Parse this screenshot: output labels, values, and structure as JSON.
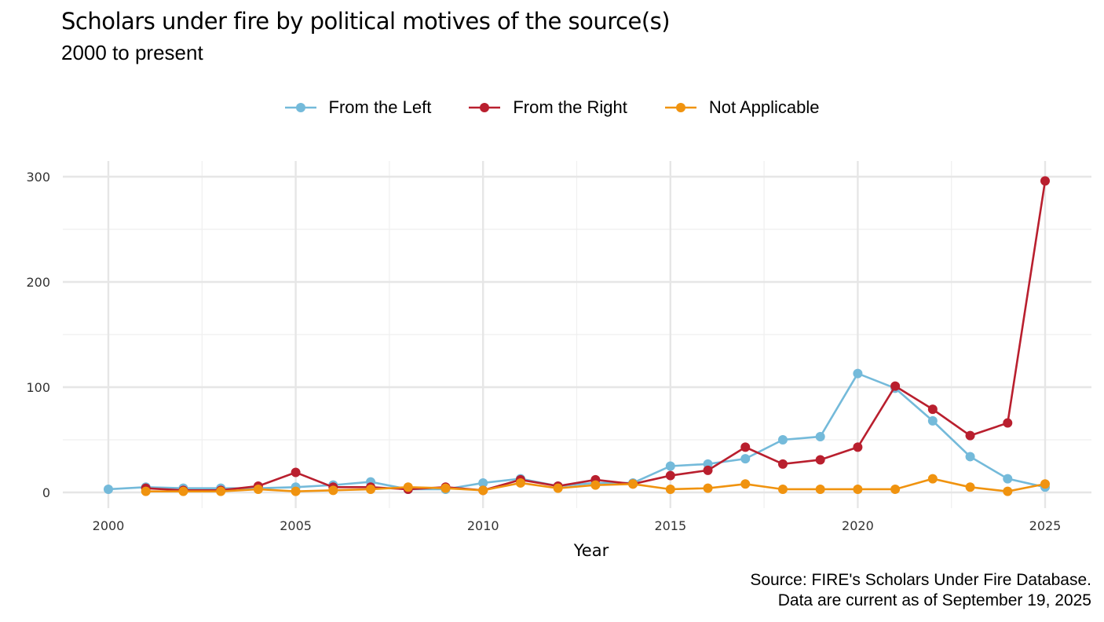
{
  "chart_data": {
    "type": "line",
    "title": "Scholars under fire by political motives of the source(s)",
    "subtitle": "2000 to present",
    "xlabel": "Year",
    "ylabel": "",
    "xlim": [
      2000,
      2025
    ],
    "ylim": [
      0,
      300
    ],
    "x_ticks": [
      2000,
      2005,
      2010,
      2015,
      2020,
      2025
    ],
    "y_ticks": [
      0,
      100,
      200,
      300
    ],
    "grid": true,
    "legend_position": "top",
    "series": [
      {
        "name": "From the Left",
        "color": "#74BADA",
        "x": [
          2000,
          2001,
          2002,
          2003,
          2004,
          2005,
          2006,
          2007,
          2008,
          2009,
          2010,
          2011,
          2012,
          2013,
          2014,
          2015,
          2016,
          2017,
          2018,
          2019,
          2020,
          2021,
          2022,
          2023,
          2024,
          2025
        ],
        "values": [
          3,
          5,
          4,
          4,
          4,
          5,
          7,
          10,
          3,
          3,
          9,
          13,
          6,
          9,
          9,
          25,
          27,
          32,
          50,
          53,
          113,
          99,
          68,
          34,
          13,
          5
        ]
      },
      {
        "name": "From the Right",
        "color": "#B91F2E",
        "x": [
          2001,
          2002,
          2003,
          2004,
          2005,
          2006,
          2007,
          2008,
          2009,
          2010,
          2011,
          2012,
          2013,
          2014,
          2015,
          2016,
          2017,
          2018,
          2019,
          2020,
          2021,
          2022,
          2023,
          2024,
          2025
        ],
        "values": [
          4,
          2,
          2,
          6,
          19,
          5,
          5,
          3,
          5,
          2,
          12,
          6,
          12,
          8,
          16,
          21,
          43,
          27,
          31,
          43,
          101,
          79,
          54,
          66,
          296
        ]
      },
      {
        "name": "Not Applicable",
        "color": "#F0930F",
        "x": [
          2001,
          2002,
          2003,
          2004,
          2005,
          2006,
          2007,
          2008,
          2009,
          2010,
          2011,
          2012,
          2013,
          2014,
          2015,
          2016,
          2017,
          2018,
          2019,
          2020,
          2021,
          2022,
          2023,
          2024,
          2025
        ],
        "values": [
          1,
          1,
          1,
          3,
          1,
          2,
          3,
          5,
          4,
          2,
          9,
          4,
          7,
          8,
          3,
          4,
          8,
          3,
          3,
          3,
          3,
          13,
          5,
          1,
          8
        ]
      }
    ],
    "source_lines": [
      "Source: FIRE's Scholars Under Fire Database.",
      "Data are current as of September 19, 2025"
    ]
  }
}
